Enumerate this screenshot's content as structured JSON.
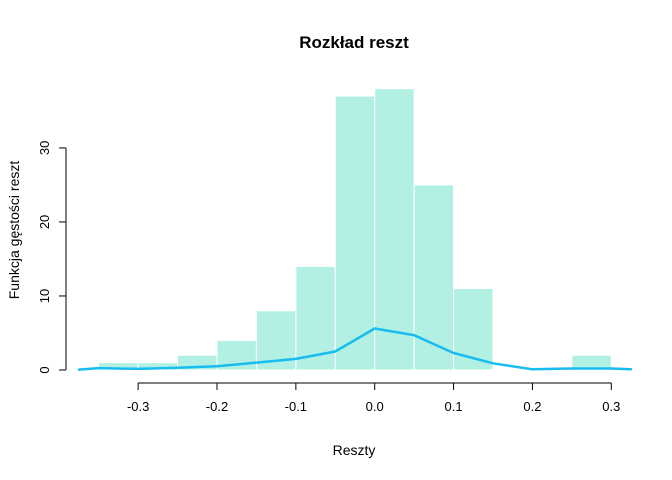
{
  "chart_data": {
    "type": "bar",
    "title": "Rozkład reszt",
    "xlabel": "Reszty",
    "ylabel": "Funkcja gęstości reszt",
    "xlim": [
      -0.375,
      0.325
    ],
    "ylim": [
      0,
      38.5
    ],
    "grid": false,
    "x_ticks": [
      -0.3,
      -0.2,
      -0.1,
      0.0,
      0.1,
      0.2,
      0.3
    ],
    "x_tick_labels": [
      "-0.3",
      "-0.2",
      "-0.1",
      "0.0",
      "0.1",
      "0.2",
      "0.3"
    ],
    "y_ticks": [
      0,
      10,
      20,
      30
    ],
    "y_tick_labels": [
      "0",
      "10",
      "20",
      "30"
    ],
    "histogram": {
      "bins": [
        {
          "from": -0.35,
          "to": -0.3,
          "value": 1
        },
        {
          "from": -0.3,
          "to": -0.25,
          "value": 1
        },
        {
          "from": -0.25,
          "to": -0.2,
          "value": 2
        },
        {
          "from": -0.2,
          "to": -0.15,
          "value": 4
        },
        {
          "from": -0.15,
          "to": -0.1,
          "value": 8
        },
        {
          "from": -0.1,
          "to": -0.05,
          "value": 14
        },
        {
          "from": -0.05,
          "to": 0.0,
          "value": 37
        },
        {
          "from": 0.0,
          "to": 0.05,
          "value": 38
        },
        {
          "from": 0.05,
          "to": 0.1,
          "value": 25
        },
        {
          "from": 0.1,
          "to": 0.15,
          "value": 11
        },
        {
          "from": 0.15,
          "to": 0.2,
          "value": 0
        },
        {
          "from": 0.2,
          "to": 0.25,
          "value": 0
        },
        {
          "from": 0.25,
          "to": 0.3,
          "value": 2
        }
      ],
      "color": "#b2f0e4"
    },
    "density_line": {
      "color": "#19bcf0",
      "points": [
        [
          -0.375,
          0.05
        ],
        [
          -0.35,
          0.25
        ],
        [
          -0.3,
          0.15
        ],
        [
          -0.25,
          0.3
        ],
        [
          -0.2,
          0.5
        ],
        [
          -0.15,
          1.0
        ],
        [
          -0.1,
          1.5
        ],
        [
          -0.05,
          2.5
        ],
        [
          0.0,
          5.6
        ],
        [
          0.05,
          4.7
        ],
        [
          0.1,
          2.3
        ],
        [
          0.15,
          0.9
        ],
        [
          0.2,
          0.1
        ],
        [
          0.25,
          0.2
        ],
        [
          0.3,
          0.2
        ],
        [
          0.325,
          0.1
        ]
      ]
    }
  }
}
